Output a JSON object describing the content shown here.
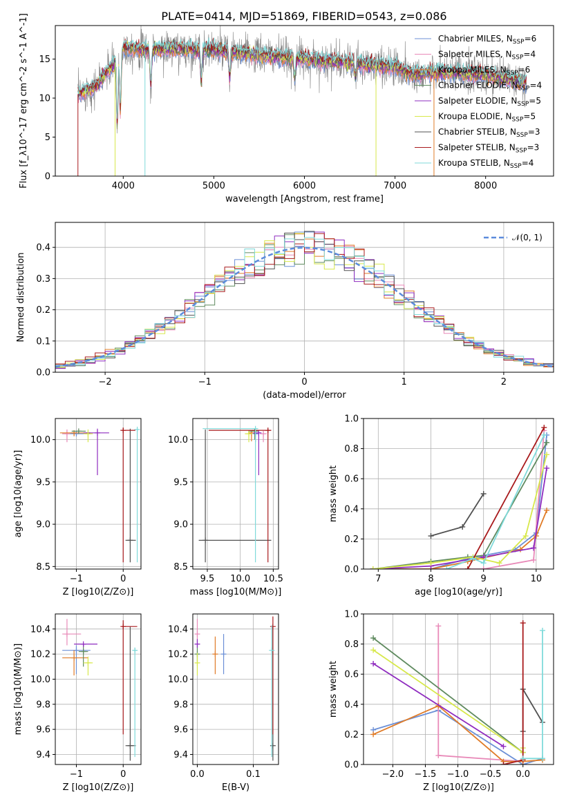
{
  "figure_title": "PLATE=0414, MJD=51869, FIBERID=0543, z=0.086",
  "colors": {
    "Chabrier MILES": "#6b8fd6",
    "Salpeter MILES": "#e889b8",
    "Kroupa MILES": "#e07b27",
    "Chabrier ELODIE": "#5f8a5f",
    "Salpeter ELODIE": "#8e2bbf",
    "Kroupa ELODIE": "#d7e84a",
    "Chabrier STELIB": "#505050",
    "Salpeter STELIB": "#a8191b",
    "Kroupa STELIB": "#7fdada",
    "data": "#7f7f7f",
    "normal_curve": "#5b8bdc"
  },
  "chart_data": [
    {
      "id": "spectrum",
      "type": "line",
      "xlabel": "wavelength [Angstrom, rest frame]",
      "ylabel": "Flux [f_λ10^-17 erg cm^-2 s^-1 A^-1]",
      "xlim": [
        3250,
        8750
      ],
      "ylim": [
        0,
        19.3
      ],
      "xticks": [
        4000,
        5000,
        6000,
        7000,
        8000
      ],
      "yticks": [
        0,
        5,
        10,
        15
      ],
      "legend_position": "upper-right",
      "series": [
        {
          "name": "Chabrier MILES",
          "nssp": "6"
        },
        {
          "name": "Salpeter MILES",
          "nssp": "4"
        },
        {
          "name": "Kroupa MILES",
          "nssp": "6"
        },
        {
          "name": "Chabrier ELODIE",
          "nssp": "4"
        },
        {
          "name": "Salpeter ELODIE",
          "nssp": "5"
        },
        {
          "name": "Kroupa ELODIE",
          "nssp": "5"
        },
        {
          "name": "Chabrier STELIB",
          "nssp": "3"
        },
        {
          "name": "Salpeter STELIB",
          "nssp": "3"
        },
        {
          "name": "Kroupa STELIB",
          "nssp": "4"
        }
      ],
      "continuum_points": [
        [
          3500,
          10.5
        ],
        [
          3700,
          11.5
        ],
        [
          3900,
          14.5
        ],
        [
          4000,
          16.5
        ],
        [
          4200,
          16.2
        ],
        [
          4500,
          16.3
        ],
        [
          5000,
          16.2
        ],
        [
          5500,
          15.5
        ],
        [
          6000,
          15.0
        ],
        [
          6500,
          14.5
        ],
        [
          7000,
          14.0
        ],
        [
          7200,
          13.0
        ],
        [
          7500,
          13.3
        ],
        [
          8000,
          13.0
        ],
        [
          8200,
          12.5
        ],
        [
          8450,
          12.0
        ]
      ],
      "absorption_lines": [
        [
          3934,
          6.5
        ],
        [
          3968,
          8.5
        ],
        [
          4304,
          11.5
        ],
        [
          4861,
          12.0
        ],
        [
          5175,
          12.5
        ],
        [
          5893,
          12.5
        ],
        [
          6563,
          12.5
        ]
      ]
    },
    {
      "id": "residuals",
      "type": "histogram",
      "xlabel": "(data-model)/error",
      "ylabel": "Normed distribution",
      "xlim": [
        -2.5,
        2.5
      ],
      "ylim": [
        0,
        0.48
      ],
      "xticks": [
        -2,
        -1,
        0,
        1,
        2
      ],
      "yticks": [
        0.0,
        0.1,
        0.2,
        0.3,
        0.4
      ],
      "grid": true,
      "legend": "𝒩(0, 1)",
      "legend_position": "upper-right",
      "bin_width": 0.1
    },
    {
      "id": "age_vs_Z",
      "type": "errorbar",
      "xlabel": "Z [log10(Z/Z⊙)]",
      "ylabel": "age  [log10(age/yr)]",
      "xlim": [
        -1.45,
        0.38
      ],
      "ylim": [
        8.47,
        10.25
      ],
      "xticks": [
        -1,
        0
      ],
      "yticks": [
        8.5,
        9.0,
        9.5,
        10.0
      ],
      "grid": true,
      "points": [
        {
          "model": "Chabrier MILES",
          "x": -1.0,
          "xerr": [
            0.3,
            0.3
          ],
          "y": 10.07,
          "yerr": [
            0.03,
            0.03
          ]
        },
        {
          "model": "Salpeter MILES",
          "x": -1.2,
          "xerr": [
            0.1,
            0.05
          ],
          "y": 10.07,
          "yerr": [
            0.1,
            0.05
          ]
        },
        {
          "model": "Kroupa MILES",
          "x": -1.05,
          "xerr": [
            0.3,
            0.35
          ],
          "y": 10.08,
          "yerr": [
            0.04,
            0.02
          ]
        },
        {
          "model": "Chabrier ELODIE",
          "x": -0.95,
          "xerr": [
            0.15,
            0.15
          ],
          "y": 10.1,
          "yerr": [
            0.02,
            0.01
          ]
        },
        {
          "model": "Salpeter ELODIE",
          "x": -0.55,
          "xerr": [
            0.3,
            0.25
          ],
          "y": 10.08,
          "yerr": [
            0.5,
            0.05
          ]
        },
        {
          "model": "Kroupa ELODIE",
          "x": -0.75,
          "xerr": [
            0.1,
            0.1
          ],
          "y": 10.07,
          "yerr": [
            0.1,
            0.05
          ]
        },
        {
          "model": "Chabrier STELIB",
          "x": 0.15,
          "xerr": [
            0.1,
            0.12
          ],
          "y": 8.81,
          "yerr": [
            0.26,
            1.32
          ]
        },
        {
          "model": "Salpeter STELIB",
          "x": 0.0,
          "xerr": [
            0.03,
            0.26
          ],
          "y": 10.11,
          "yerr": [
            1.56,
            0.03
          ]
        },
        {
          "model": "Kroupa STELIB",
          "x": 0.3,
          "xerr": [
            0.03,
            0.03
          ],
          "y": 10.12,
          "yerr": [
            1.57,
            0.01
          ]
        }
      ]
    },
    {
      "id": "age_vs_mass",
      "type": "errorbar",
      "xlabel": "mass [log10(M/M⊙)]",
      "ylabel": "",
      "xlim": [
        9.28,
        10.58
      ],
      "ylim": [
        8.47,
        10.25
      ],
      "xticks": [
        9.5,
        10.0,
        10.5
      ],
      "yticks": [
        8.5,
        9.0,
        9.5,
        10.0
      ],
      "grid": true,
      "points": [
        {
          "model": "Chabrier MILES",
          "x": 10.23,
          "xerr": [
            0.03,
            0.03
          ],
          "y": 10.07,
          "yerr": [
            0.1,
            0.02
          ]
        },
        {
          "model": "Salpeter MILES",
          "x": 10.35,
          "xerr": [
            0.05,
            0.05
          ],
          "y": 10.07,
          "yerr": [
            0.1,
            0.02
          ]
        },
        {
          "model": "Kroupa MILES",
          "x": 10.17,
          "xerr": [
            0.05,
            0.03
          ],
          "y": 10.08,
          "yerr": [
            0.1,
            0.03
          ]
        },
        {
          "model": "Chabrier ELODIE",
          "x": 10.22,
          "xerr": [
            0.1,
            0.05
          ],
          "y": 10.1,
          "yerr": [
            0.1,
            0.01
          ]
        },
        {
          "model": "Salpeter ELODIE",
          "x": 10.28,
          "xerr": [
            0.08,
            0.03
          ],
          "y": 10.08,
          "yerr": [
            0.5,
            0.03
          ]
        },
        {
          "model": "Kroupa ELODIE",
          "x": 10.13,
          "xerr": [
            0.06,
            0.05
          ],
          "y": 10.07,
          "yerr": [
            0.1,
            0.03
          ]
        },
        {
          "model": "Chabrier STELIB",
          "x": 9.47,
          "xerr": [
            0.1,
            1.0
          ],
          "y": 8.81,
          "yerr": [
            0.26,
            1.31
          ]
        },
        {
          "model": "Salpeter STELIB",
          "x": 10.42,
          "xerr": [
            0.9,
            0.05
          ],
          "y": 10.11,
          "yerr": [
            1.56,
            0.02
          ]
        },
        {
          "model": "Kroupa STELIB",
          "x": 10.23,
          "xerr": [
            0.8,
            0.03
          ],
          "y": 10.13,
          "yerr": [
            1.58,
            0.01
          ]
        }
      ]
    },
    {
      "id": "weight_vs_age",
      "type": "line",
      "xlabel": "age  [log10(age/yr)]",
      "ylabel": "mass weight",
      "xlim": [
        6.72,
        10.33
      ],
      "ylim": [
        0,
        1.0
      ],
      "xticks": [
        7,
        8,
        9,
        10
      ],
      "yticks": [
        0.0,
        0.2,
        0.4,
        0.6,
        0.8,
        1.0
      ],
      "grid": true,
      "series": [
        {
          "name": "Chabrier MILES",
          "x": [
            6.9,
            8.0,
            8.7,
            9.6,
            10.0,
            10.2
          ],
          "y": [
            0.0,
            0.0,
            0.07,
            0.13,
            0.24,
            0.89
          ]
        },
        {
          "name": "Salpeter MILES",
          "x": [
            6.9,
            8.0,
            9.0,
            9.95,
            10.15
          ],
          "y": [
            0.0,
            0.0,
            0.0,
            0.06,
            0.92
          ]
        },
        {
          "name": "Kroupa MILES",
          "x": [
            6.9,
            8.0,
            8.7,
            9.7,
            10.0,
            10.2
          ],
          "y": [
            0.0,
            0.0,
            0.05,
            0.13,
            0.22,
            0.39
          ]
        },
        {
          "name": "Chabrier ELODIE",
          "x": [
            6.9,
            8.0,
            8.7,
            9.0,
            10.2
          ],
          "y": [
            0.0,
            0.05,
            0.08,
            0.09,
            0.84
          ]
        },
        {
          "name": "Salpeter ELODIE",
          "x": [
            6.9,
            8.0,
            9.0,
            9.95,
            10.2
          ],
          "y": [
            0.0,
            0.02,
            0.08,
            0.14,
            0.67
          ]
        },
        {
          "name": "Kroupa ELODIE",
          "x": [
            6.9,
            8.0,
            8.8,
            9.3,
            9.8,
            10.2
          ],
          "y": [
            0.0,
            0.04,
            0.08,
            0.04,
            0.22,
            0.76
          ]
        },
        {
          "name": "Chabrier STELIB",
          "x": [
            8.0,
            8.6,
            9.0
          ],
          "y": [
            0.22,
            0.28,
            0.5
          ]
        },
        {
          "name": "Salpeter STELIB",
          "x": [
            8.7,
            10.15
          ],
          "y": [
            0.0,
            0.94
          ]
        },
        {
          "name": "Kroupa STELIB",
          "x": [
            8.3,
            8.8,
            9.0,
            10.15
          ],
          "y": [
            0.0,
            0.07,
            0.04,
            0.89
          ]
        }
      ]
    },
    {
      "id": "mass_vs_Z",
      "type": "errorbar",
      "xlabel": "Z [log10(Z/Z⊙)]",
      "ylabel": "mass [log10(M/M⊙)]",
      "xlim": [
        -1.45,
        0.38
      ],
      "ylim": [
        9.32,
        10.52
      ],
      "xticks": [
        -1,
        0
      ],
      "yticks": [
        9.4,
        9.6,
        9.8,
        10.0,
        10.2,
        10.4
      ],
      "grid": true,
      "points": [
        {
          "model": "Chabrier MILES",
          "x": -1.0,
          "xerr": [
            0.3,
            0.3
          ],
          "y": 10.23,
          "yerr": [
            0.19,
            0.04
          ]
        },
        {
          "model": "Salpeter MILES",
          "x": -1.2,
          "xerr": [
            0.1,
            0.3
          ],
          "y": 10.36,
          "yerr": [
            0.09,
            0.12
          ]
        },
        {
          "model": "Kroupa MILES",
          "x": -1.05,
          "xerr": [
            0.25,
            0.3
          ],
          "y": 10.17,
          "yerr": [
            0.14,
            0.06
          ]
        },
        {
          "model": "Chabrier ELODIE",
          "x": -0.85,
          "xerr": [
            0.1,
            0.1
          ],
          "y": 10.22,
          "yerr": [
            0.12,
            0.05
          ]
        },
        {
          "model": "Salpeter ELODIE",
          "x": -0.85,
          "xerr": [
            0.2,
            0.3
          ],
          "y": 10.28,
          "yerr": [
            0.02,
            0.0
          ]
        },
        {
          "model": "Kroupa ELODIE",
          "x": -0.75,
          "xerr": [
            0.1,
            0.1
          ],
          "y": 10.13,
          "yerr": [
            0.1,
            0.05
          ]
        },
        {
          "model": "Chabrier STELIB",
          "x": 0.15,
          "xerr": [
            0.1,
            0.12
          ],
          "y": 9.47,
          "yerr": [
            0.12,
            0.95
          ]
        },
        {
          "model": "Salpeter STELIB",
          "x": 0.0,
          "xerr": [
            0.03,
            0.3
          ],
          "y": 10.42,
          "yerr": [
            0.86,
            0.05
          ]
        },
        {
          "model": "Kroupa STELIB",
          "x": 0.25,
          "xerr": [
            0.03,
            0.05
          ],
          "y": 10.23,
          "yerr": [
            0.85,
            0.02
          ]
        }
      ]
    },
    {
      "id": "mass_vs_ebv",
      "type": "errorbar",
      "xlabel": "E(B-V)",
      "ylabel": "",
      "xlim": [
        -0.008,
        0.145
      ],
      "ylim": [
        9.32,
        10.52
      ],
      "xticks": [
        0.0,
        0.1
      ],
      "yticks": [
        9.4,
        9.6,
        9.8,
        10.0,
        10.2,
        10.4
      ],
      "grid": true,
      "points": [
        {
          "model": "Chabrier MILES",
          "x": 0.047,
          "xerr": [
            0.0,
            0.0
          ],
          "y": 10.2,
          "yerr": [
            0.16,
            0.16
          ]
        },
        {
          "model": "Salpeter MILES",
          "x": 0.0,
          "xerr": [
            0.0,
            0.0
          ],
          "y": 10.36,
          "yerr": [
            0.06,
            0.12
          ]
        },
        {
          "model": "Kroupa MILES",
          "x": 0.032,
          "xerr": [
            0.0,
            0.0
          ],
          "y": 10.2,
          "yerr": [
            0.16,
            0.14
          ]
        },
        {
          "model": "Chabrier ELODIE",
          "x": 0.0,
          "xerr": [
            0.0,
            0.0
          ],
          "y": 10.2,
          "yerr": [
            0.06,
            0.06
          ]
        },
        {
          "model": "Salpeter ELODIE",
          "x": 0.0,
          "xerr": [
            0.0,
            0.0
          ],
          "y": 10.28,
          "yerr": [
            0.03,
            0.04
          ]
        },
        {
          "model": "Kroupa ELODIE",
          "x": 0.0,
          "xerr": [
            0.0,
            0.0
          ],
          "y": 10.13,
          "yerr": [
            0.1,
            0.08
          ]
        },
        {
          "model": "Chabrier STELIB",
          "x": 0.135,
          "xerr": [
            0.0,
            0.0
          ],
          "y": 9.47,
          "yerr": [
            0.12,
            0.95
          ]
        },
        {
          "model": "Salpeter STELIB",
          "x": 0.135,
          "xerr": [
            0.0,
            0.0
          ],
          "y": 10.42,
          "yerr": [
            0.86,
            0.08
          ]
        },
        {
          "model": "Kroupa STELIB",
          "x": 0.133,
          "xerr": [
            0.0,
            0.0
          ],
          "y": 10.23,
          "yerr": [
            0.85,
            0.2
          ]
        }
      ]
    },
    {
      "id": "weight_vs_Z",
      "type": "line",
      "xlabel": "Z [log10(Z/Z⊙)]",
      "ylabel": "mass weight",
      "xlim": [
        -2.45,
        0.47
      ],
      "ylim": [
        0,
        1.0
      ],
      "xticks": [
        -2.0,
        -1.5,
        -1.0,
        -0.5,
        0.0
      ],
      "yticks": [
        0.0,
        0.2,
        0.4,
        0.6,
        0.8,
        1.0
      ],
      "grid": true,
      "series": [
        {
          "name": "Chabrier MILES",
          "x": [
            -2.3,
            -1.3,
            0.0,
            0.3
          ],
          "y": [
            0.23,
            0.36,
            0.0,
            0.04
          ]
        },
        {
          "name": "Salpeter MILES",
          "x": [
            -1.3,
            -1.3,
            0.0
          ],
          "y": [
            0.92,
            0.06,
            0.02
          ]
        },
        {
          "name": "Kroupa MILES",
          "x": [
            -2.3,
            -1.3,
            -0.3,
            0.0,
            0.3
          ],
          "y": [
            0.2,
            0.39,
            0.02,
            0.02,
            0.03
          ]
        },
        {
          "name": "Chabrier ELODIE",
          "x": [
            -2.3,
            0.0
          ],
          "y": [
            0.84,
            0.08
          ]
        },
        {
          "name": "Salpeter ELODIE",
          "x": [
            -2.3,
            -0.3
          ],
          "y": [
            0.67,
            0.12
          ]
        },
        {
          "name": "Kroupa ELODIE",
          "x": [
            -2.3,
            0.0,
            0.0
          ],
          "y": [
            0.76,
            0.08,
            0.11
          ]
        },
        {
          "name": "Chabrier STELIB",
          "x": [
            0.0,
            0.0,
            0.3
          ],
          "y": [
            0.22,
            0.5,
            0.28
          ]
        },
        {
          "name": "Salpeter STELIB",
          "x": [
            -0.3,
            0.0,
            0.0
          ],
          "y": [
            0.0,
            0.03,
            0.94
          ]
        },
        {
          "name": "Kroupa STELIB",
          "x": [
            0.0,
            0.3,
            0.3
          ],
          "y": [
            0.04,
            0.04,
            0.89
          ]
        }
      ]
    }
  ]
}
